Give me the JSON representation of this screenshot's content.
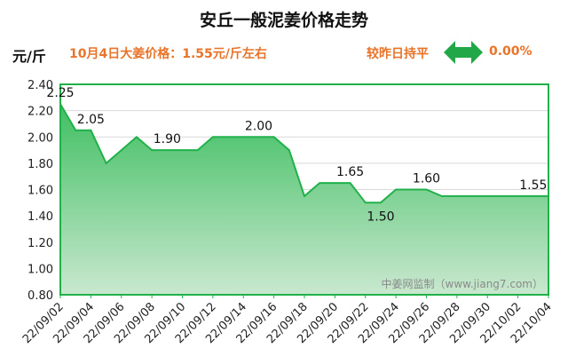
{
  "header": {
    "title": "安丘一般泥姜价格走势",
    "unit": "元/斤",
    "price_text": "10月4日大姜价格：1.55元/斤左右",
    "compare_text": "较昨日持平",
    "change_pct": "0.00%"
  },
  "icons": {
    "trend": "double-arrow-icon"
  },
  "colors": {
    "accent": "#e8742a",
    "line": "#21b14b",
    "fill_top": "#3fbf62",
    "fill_bottom": "#c9e8cf",
    "arrow": "#21a748"
  },
  "watermark": "中姜网监制（www.jiang7.com）",
  "chart_data": {
    "type": "area",
    "title": "安丘一般泥姜价格走势",
    "ylabel": "元/斤",
    "ylim": [
      0.8,
      2.4
    ],
    "yticks": [
      0.8,
      1.0,
      1.2,
      1.4,
      1.6,
      1.8,
      2.0,
      2.2,
      2.4
    ],
    "ytick_labels": [
      "0.80",
      "1.00",
      "1.20",
      "1.40",
      "1.60",
      "1.80",
      "2.00",
      "2.20",
      "2.40"
    ],
    "xtick_labels": [
      "22/09/02",
      "22/09/04",
      "22/09/06",
      "22/09/08",
      "22/09/10",
      "22/09/12",
      "22/09/14",
      "22/09/16",
      "22/09/18",
      "22/09/20",
      "22/09/22",
      "22/09/24",
      "22/09/26",
      "22/09/28",
      "22/09/30",
      "22/10/02",
      "22/10/04"
    ],
    "x": [
      "22/09/02",
      "22/09/03",
      "22/09/04",
      "22/09/05",
      "22/09/06",
      "22/09/07",
      "22/09/08",
      "22/09/09",
      "22/09/10",
      "22/09/11",
      "22/09/12",
      "22/09/13",
      "22/09/14",
      "22/09/15",
      "22/09/16",
      "22/09/17",
      "22/09/18",
      "22/09/19",
      "22/09/20",
      "22/09/21",
      "22/09/22",
      "22/09/23",
      "22/09/24",
      "22/09/25",
      "22/09/26",
      "22/09/27",
      "22/09/28",
      "22/09/29",
      "22/09/30",
      "22/10/01",
      "22/10/02",
      "22/10/03",
      "22/10/04"
    ],
    "values": [
      2.25,
      2.05,
      2.05,
      1.8,
      1.9,
      2.0,
      1.9,
      1.9,
      1.9,
      1.9,
      2.0,
      2.0,
      2.0,
      2.0,
      2.0,
      1.9,
      1.55,
      1.65,
      1.65,
      1.65,
      1.5,
      1.5,
      1.6,
      1.6,
      1.6,
      1.55,
      1.55,
      1.55,
      1.55,
      1.55,
      1.55,
      1.55,
      1.55
    ],
    "data_labels": [
      {
        "x": "22/09/02",
        "text": "2.25"
      },
      {
        "x": "22/09/04",
        "text": "2.05"
      },
      {
        "x": "22/09/09",
        "text": "1.90"
      },
      {
        "x": "22/09/15",
        "text": "2.00"
      },
      {
        "x": "22/09/21",
        "text": "1.65"
      },
      {
        "x": "22/09/23",
        "text": "1.50"
      },
      {
        "x": "22/09/26",
        "text": "1.60"
      },
      {
        "x": "22/10/03",
        "text": "1.55"
      }
    ],
    "grid": true
  }
}
